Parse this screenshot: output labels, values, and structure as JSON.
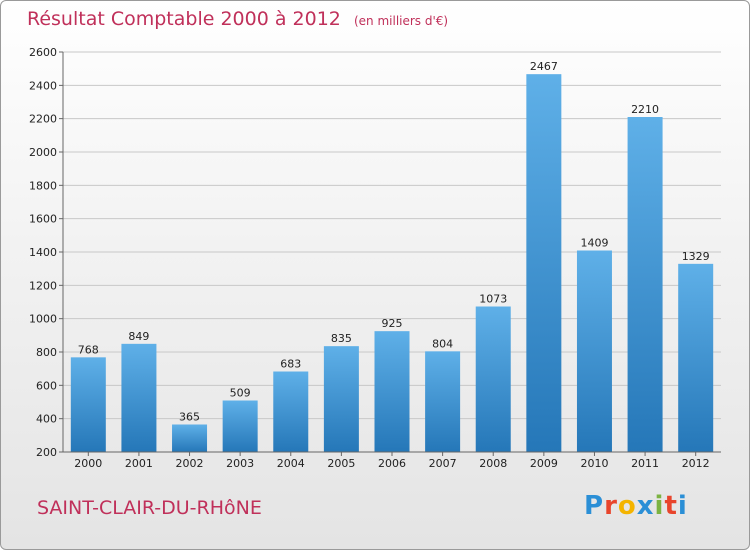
{
  "header": {
    "title": "Résultat Comptable 2000 à 2012",
    "subtitle": "(en milliers d'€)"
  },
  "footer": {
    "location": "SAINT-CLAIR-DU-RHôNE",
    "logo_letters": [
      "P",
      "r",
      "o",
      "x",
      "i",
      "t",
      "i"
    ],
    "logo_colors": [
      "#2b8fd6",
      "#e8452c",
      "#f4b400",
      "#2b8fd6",
      "#7cb342",
      "#e8452c",
      "#2b8fd6"
    ]
  },
  "colors": {
    "bar_top": "#5fb0e8",
    "bar_bottom": "#2577b8",
    "title": "#c0305a"
  },
  "chart_data": {
    "type": "bar",
    "categories": [
      "2000",
      "2001",
      "2002",
      "2003",
      "2004",
      "2005",
      "2006",
      "2007",
      "2008",
      "2009",
      "2010",
      "2011",
      "2012"
    ],
    "values": [
      768,
      849,
      365,
      509,
      683,
      835,
      925,
      804,
      1073,
      2467,
      1409,
      2210,
      1329
    ],
    "title": "Résultat Comptable 2000 à 2012",
    "ylim": [
      200,
      2600
    ],
    "yticks": [
      200,
      400,
      600,
      800,
      1000,
      1200,
      1400,
      1600,
      1800,
      2000,
      2200,
      2400,
      2600
    ],
    "grid": true
  }
}
